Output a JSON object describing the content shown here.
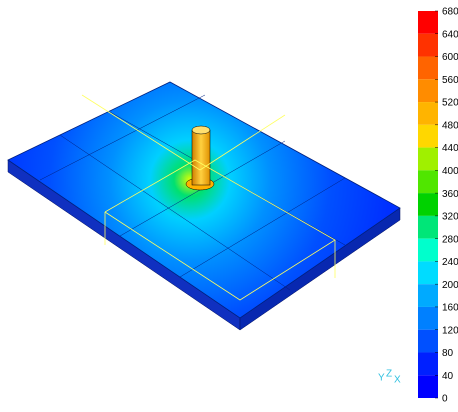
{
  "legend": {
    "ticks": [
      680,
      640,
      600,
      560,
      520,
      480,
      440,
      400,
      360,
      320,
      280,
      240,
      200,
      160,
      120,
      80,
      40,
      0
    ],
    "colors": [
      "#ff0000",
      "#ff3200",
      "#ff6400",
      "#ff8c00",
      "#ffb400",
      "#ffd700",
      "#a0f000",
      "#50e600",
      "#00d200",
      "#00e678",
      "#00ffcc",
      "#00dcff",
      "#00aaff",
      "#0080ff",
      "#0050ff",
      "#0020ff",
      "#0000ff"
    ]
  },
  "triad": {
    "labels": [
      "Y",
      "Z",
      "X"
    ]
  }
}
